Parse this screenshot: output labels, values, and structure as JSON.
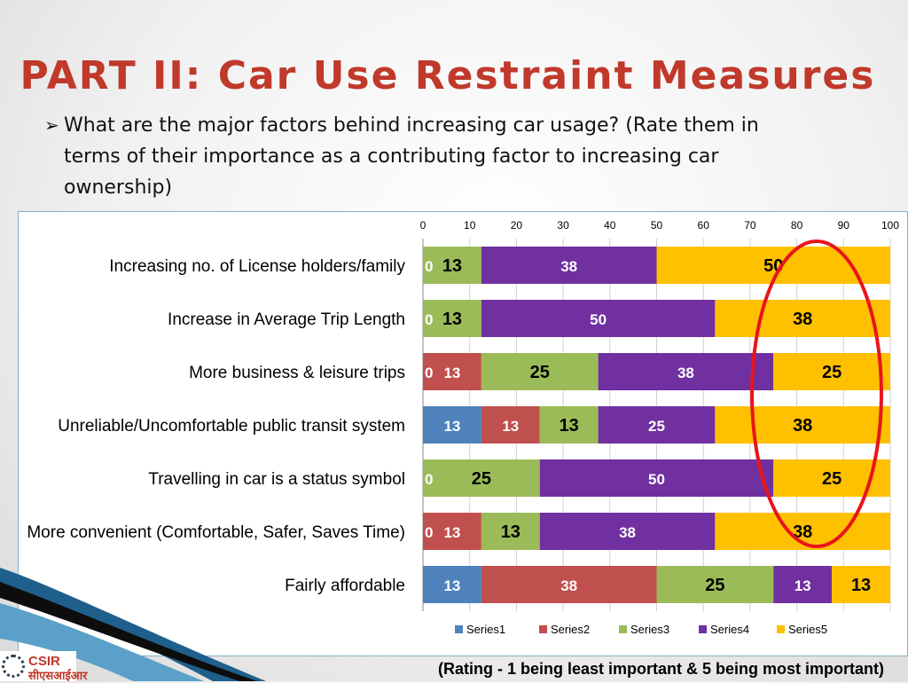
{
  "slide": {
    "title": "PART II: Car Use Restraint Measures",
    "bullet_marker": "➢",
    "bullet_text": "What  are the major factors behind increasing car usage? (Rate them in terms of their importance as a contributing factor to increasing car ownership)",
    "footnote": "(Rating - 1 being least important & 5 being most important)",
    "logo_text": "CSIR",
    "logo_subtext": "सीएसआईआर"
  },
  "chart_data": {
    "type": "bar",
    "orientation": "horizontal",
    "stacked": true,
    "categories": [
      "Increasing no. of License holders/family",
      "Increase in Average Trip Length",
      "More business & leisure trips",
      "Unreliable/Uncomfortable public transit system",
      "Travelling in car is a status symbol",
      "More convenient (Comfortable, Safer, Saves Time)",
      "Fairly affordable"
    ],
    "series": [
      {
        "name": "Series1",
        "color": "#4f81bd",
        "label_color": "#ffffff",
        "values": [
          0,
          0,
          0,
          12.5,
          0,
          0,
          12.5
        ],
        "labels": [
          "0",
          "0",
          "0",
          "13",
          "0",
          "0",
          "13"
        ]
      },
      {
        "name": "Series2",
        "color": "#c0504d",
        "label_color": "#ffffff",
        "values": [
          0,
          0,
          12.5,
          12.5,
          0,
          12.5,
          37.5
        ],
        "labels": [
          "",
          "",
          "13",
          "13",
          "",
          "13",
          "38"
        ]
      },
      {
        "name": "Series3",
        "color": "#9bbb59",
        "label_color": "#000000",
        "values": [
          12.5,
          12.5,
          25,
          12.5,
          25,
          12.5,
          25
        ],
        "labels": [
          "13",
          "13",
          "25",
          "13",
          "25",
          "13",
          "25"
        ]
      },
      {
        "name": "Series4",
        "color": "#7030a0",
        "label_color": "#ffffff",
        "values": [
          37.5,
          50,
          37.5,
          25,
          50,
          37.5,
          12.5
        ],
        "labels": [
          "38",
          "50",
          "38",
          "25",
          "50",
          "38",
          "13"
        ]
      },
      {
        "name": "Series5",
        "color": "#ffc000",
        "label_color": "#000000",
        "values": [
          50,
          37.5,
          25,
          37.5,
          25,
          37.5,
          12.5
        ],
        "labels": [
          "50",
          "38",
          "25",
          "38",
          "25",
          "38",
          "13"
        ]
      }
    ],
    "xlim": [
      0,
      100
    ],
    "x_ticks": [
      "0",
      "10",
      "20",
      "30",
      "40",
      "50",
      "60",
      "70",
      "80",
      "90",
      "100"
    ],
    "x_axis_position": "top",
    "grid": true,
    "legend_position": "bottom",
    "annotation": "red oval highlighting the 80–100 range",
    "annotation_color": "#e8151b"
  }
}
